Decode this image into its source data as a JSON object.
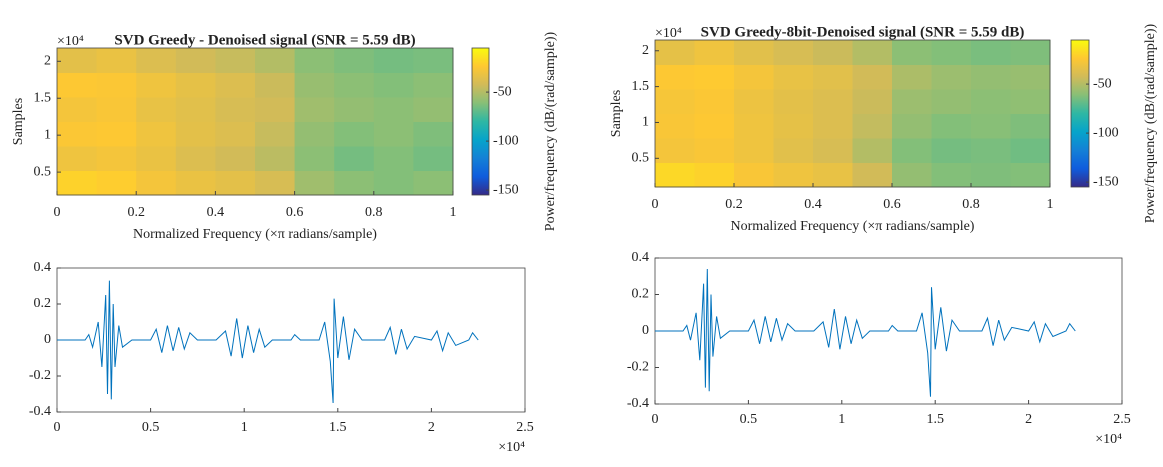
{
  "chart_data": [
    {
      "type": "heatmap",
      "title": "SVD Greedy - Denoised signal (SNR = 5.59 dB)",
      "xlabel": "Normalized Frequency (×π radians/sample)",
      "ylabel": "Samples",
      "y_offset_label": "×10⁴",
      "xlim": [
        0,
        1
      ],
      "xticks": [
        0,
        0.2,
        0.4,
        0.6,
        0.8,
        1
      ],
      "ylim": [
        0.19,
        2.18
      ],
      "yticks": [
        0.5,
        1,
        1.5,
        2
      ],
      "z": [
        [
          -20,
          -22,
          -28,
          -32,
          -35,
          -40,
          -55,
          -60,
          -62,
          -60
        ],
        [
          -30,
          -28,
          -32,
          -38,
          -42,
          -48,
          -60,
          -65,
          -62,
          -65
        ],
        [
          -25,
          -24,
          -30,
          -35,
          -38,
          -45,
          -58,
          -62,
          -60,
          -63
        ],
        [
          -28,
          -26,
          -33,
          -36,
          -40,
          -42,
          -55,
          -58,
          -60,
          -58
        ],
        [
          -24,
          -25,
          -30,
          -34,
          -38,
          -44,
          -57,
          -60,
          -62,
          -60
        ],
        [
          -35,
          -32,
          -38,
          -42,
          -45,
          -50,
          -60,
          -63,
          -65,
          -64
        ]
      ],
      "colormap": [
        "#352a87",
        "#0f5cdd",
        "#1481d6",
        "#06a4ca",
        "#2eb7a4",
        "#87bf77",
        "#d1bb59",
        "#fec832",
        "#f9fb0e"
      ],
      "clim": [
        -155,
        -5
      ],
      "colorbar_ticks": [
        -150,
        -100,
        -50
      ],
      "colorbar_label": "Power/frequency (dB/(rad/sample))"
    },
    {
      "type": "heatmap",
      "title": "SVD Greedy-8bit-Denoised signal (SNR = 5.59 dB)",
      "xlabel": "Normalized Frequency (×π radians/sample)",
      "ylabel": "Samples",
      "y_offset_label": "×10⁴",
      "xlim": [
        0,
        1
      ],
      "xticks": [
        0,
        0.2,
        0.4,
        0.6,
        0.8,
        1
      ],
      "ylim": [
        0.1,
        2.15
      ],
      "yticks": [
        0.5,
        1,
        1.5,
        2
      ],
      "z": [
        [
          -18,
          -20,
          -26,
          -30,
          -33,
          -42,
          -58,
          -62,
          -63,
          -62
        ],
        [
          -28,
          -26,
          -30,
          -36,
          -40,
          -50,
          -62,
          -65,
          -64,
          -66
        ],
        [
          -26,
          -24,
          -30,
          -34,
          -38,
          -46,
          -58,
          -62,
          -61,
          -63
        ],
        [
          -27,
          -25,
          -31,
          -35,
          -38,
          -44,
          -56,
          -58,
          -60,
          -59
        ],
        [
          -24,
          -23,
          -28,
          -33,
          -36,
          -42,
          -52,
          -56,
          -58,
          -57
        ],
        [
          -34,
          -30,
          -36,
          -40,
          -44,
          -50,
          -60,
          -62,
          -64,
          -63
        ]
      ],
      "colormap": [
        "#352a87",
        "#0f5cdd",
        "#1481d6",
        "#06a4ca",
        "#2eb7a4",
        "#87bf77",
        "#d1bb59",
        "#fec832",
        "#f9fb0e"
      ],
      "clim": [
        -155,
        -5
      ],
      "colorbar_ticks": [
        -150,
        -100,
        -50
      ],
      "colorbar_label": "Power/frequency (dB/(rad/sample))"
    },
    {
      "type": "line",
      "color": "#0072bd",
      "x_offset_label": "×10⁴",
      "xlim": [
        0,
        2.5
      ],
      "xticks": [
        0,
        0.5,
        1,
        1.5,
        2,
        2.5
      ],
      "ylim": [
        -0.4,
        0.4
      ],
      "yticks": [
        -0.4,
        -0.2,
        0,
        0.2,
        0.4
      ],
      "x": [
        0,
        0.15,
        0.17,
        0.19,
        0.22,
        0.24,
        0.26,
        0.27,
        0.28,
        0.29,
        0.3,
        0.31,
        0.33,
        0.35,
        0.4,
        0.5,
        0.53,
        0.56,
        0.59,
        0.62,
        0.65,
        0.68,
        0.71,
        0.75,
        0.85,
        0.9,
        0.93,
        0.96,
        0.99,
        1.02,
        1.05,
        1.08,
        1.11,
        1.15,
        1.25,
        1.27,
        1.3,
        1.4,
        1.43,
        1.46,
        1.475,
        1.48,
        1.5,
        1.53,
        1.56,
        1.59,
        1.63,
        1.75,
        1.78,
        1.81,
        1.84,
        1.87,
        1.91,
        2.0,
        2.03,
        2.06,
        2.09,
        2.13,
        2.2,
        2.22,
        2.25
      ],
      "values": [
        0,
        0,
        0.03,
        -0.04,
        0.1,
        -0.15,
        0.25,
        -0.3,
        0.33,
        -0.33,
        0.2,
        -0.15,
        0.08,
        -0.04,
        0,
        0,
        0.06,
        -0.07,
        0.08,
        -0.06,
        0.07,
        -0.05,
        0.04,
        0,
        0,
        0.05,
        -0.09,
        0.12,
        -0.1,
        0.08,
        -0.07,
        0.06,
        -0.04,
        0,
        0,
        0.03,
        0,
        0,
        0.1,
        -0.12,
        -0.35,
        0.23,
        -0.1,
        0.13,
        -0.11,
        0.06,
        0,
        0,
        0.07,
        -0.08,
        0.06,
        -0.05,
        0.02,
        0,
        0.05,
        -0.06,
        0.04,
        -0.03,
        0,
        0.04,
        0
      ]
    },
    {
      "type": "line",
      "color": "#0072bd",
      "x_offset_label": "×10⁴",
      "xlim": [
        0,
        2.5
      ],
      "xticks": [
        0,
        0.5,
        1,
        1.5,
        2,
        2.5
      ],
      "ylim": [
        -0.4,
        0.4
      ],
      "yticks": [
        -0.4,
        -0.2,
        0,
        0.2,
        0.4
      ],
      "x": [
        0,
        0.15,
        0.17,
        0.19,
        0.22,
        0.24,
        0.26,
        0.27,
        0.28,
        0.29,
        0.3,
        0.31,
        0.33,
        0.35,
        0.4,
        0.5,
        0.53,
        0.56,
        0.59,
        0.62,
        0.65,
        0.68,
        0.71,
        0.75,
        0.85,
        0.9,
        0.93,
        0.96,
        0.99,
        1.02,
        1.05,
        1.08,
        1.11,
        1.15,
        1.25,
        1.27,
        1.3,
        1.4,
        1.43,
        1.46,
        1.475,
        1.48,
        1.5,
        1.53,
        1.56,
        1.59,
        1.63,
        1.75,
        1.78,
        1.81,
        1.84,
        1.87,
        1.91,
        2.0,
        2.03,
        2.06,
        2.09,
        2.13,
        2.2,
        2.22,
        2.25
      ],
      "values": [
        0,
        0,
        0.03,
        -0.05,
        0.1,
        -0.16,
        0.26,
        -0.31,
        0.34,
        -0.33,
        0.2,
        -0.14,
        0.08,
        -0.04,
        0,
        0,
        0.06,
        -0.07,
        0.08,
        -0.06,
        0.07,
        -0.05,
        0.04,
        0,
        0,
        0.05,
        -0.09,
        0.12,
        -0.1,
        0.08,
        -0.07,
        0.06,
        -0.04,
        0,
        0,
        0.03,
        0,
        0,
        0.1,
        -0.12,
        -0.36,
        0.24,
        -0.1,
        0.13,
        -0.11,
        0.06,
        0,
        0,
        0.07,
        -0.08,
        0.06,
        -0.05,
        0.02,
        0,
        0.05,
        -0.06,
        0.04,
        -0.03,
        0,
        0.04,
        0
      ]
    }
  ]
}
